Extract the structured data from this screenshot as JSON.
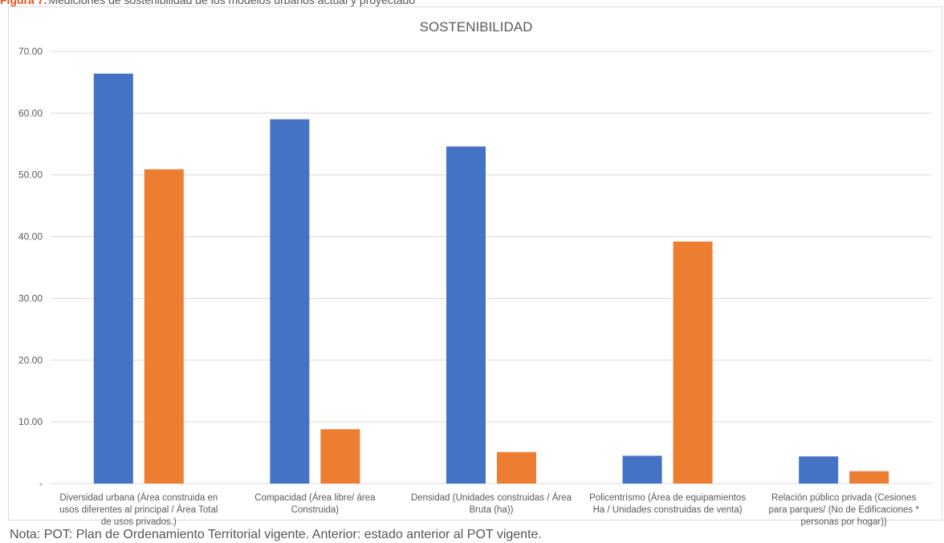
{
  "caption": {
    "label": "Figura 7.",
    "text": "Mediciones de sostenibilidad de los modelos urbanos actual y proyectado"
  },
  "note": "Nota: POT: Plan de Ordenamiento Territorial vigente. Anterior: estado anterior al POT vigente.",
  "colors": {
    "series1": "#4472c4",
    "series2": "#ed7d31",
    "gridline": "#d9d9d9",
    "text": "#595959"
  },
  "chart_data": {
    "type": "bar",
    "title": "SOSTENIBILIDAD",
    "xlabel": "",
    "ylabel": "",
    "ylim": [
      0,
      70
    ],
    "yticks": [
      "-",
      "10.00",
      "20.00",
      "30.00",
      "40.00",
      "50.00",
      "60.00",
      "70.00"
    ],
    "grid": true,
    "legend": "none",
    "categories": [
      [
        "Diversidad urbana (Área construida en",
        "usos diferentes al principal / Área Total",
        "de usos privados.)"
      ],
      [
        "Compacidad (Área libre/ área",
        "Construida)"
      ],
      [
        "Densidad (Unidades construidas / Área",
        "Bruta (ha))"
      ],
      [
        "Policentrísmo (Área de equipamientos",
        "Ha / Unidades construidas de venta)"
      ],
      [
        "Relación público privada (Cesiones",
        "para parques/ (No de Edificaciones *",
        "personas por hogar))"
      ]
    ],
    "series": [
      {
        "values": [
          66.4,
          59.0,
          54.6,
          4.5,
          4.4
        ]
      },
      {
        "values": [
          50.9,
          8.8,
          5.1,
          39.2,
          2.0
        ]
      }
    ]
  }
}
